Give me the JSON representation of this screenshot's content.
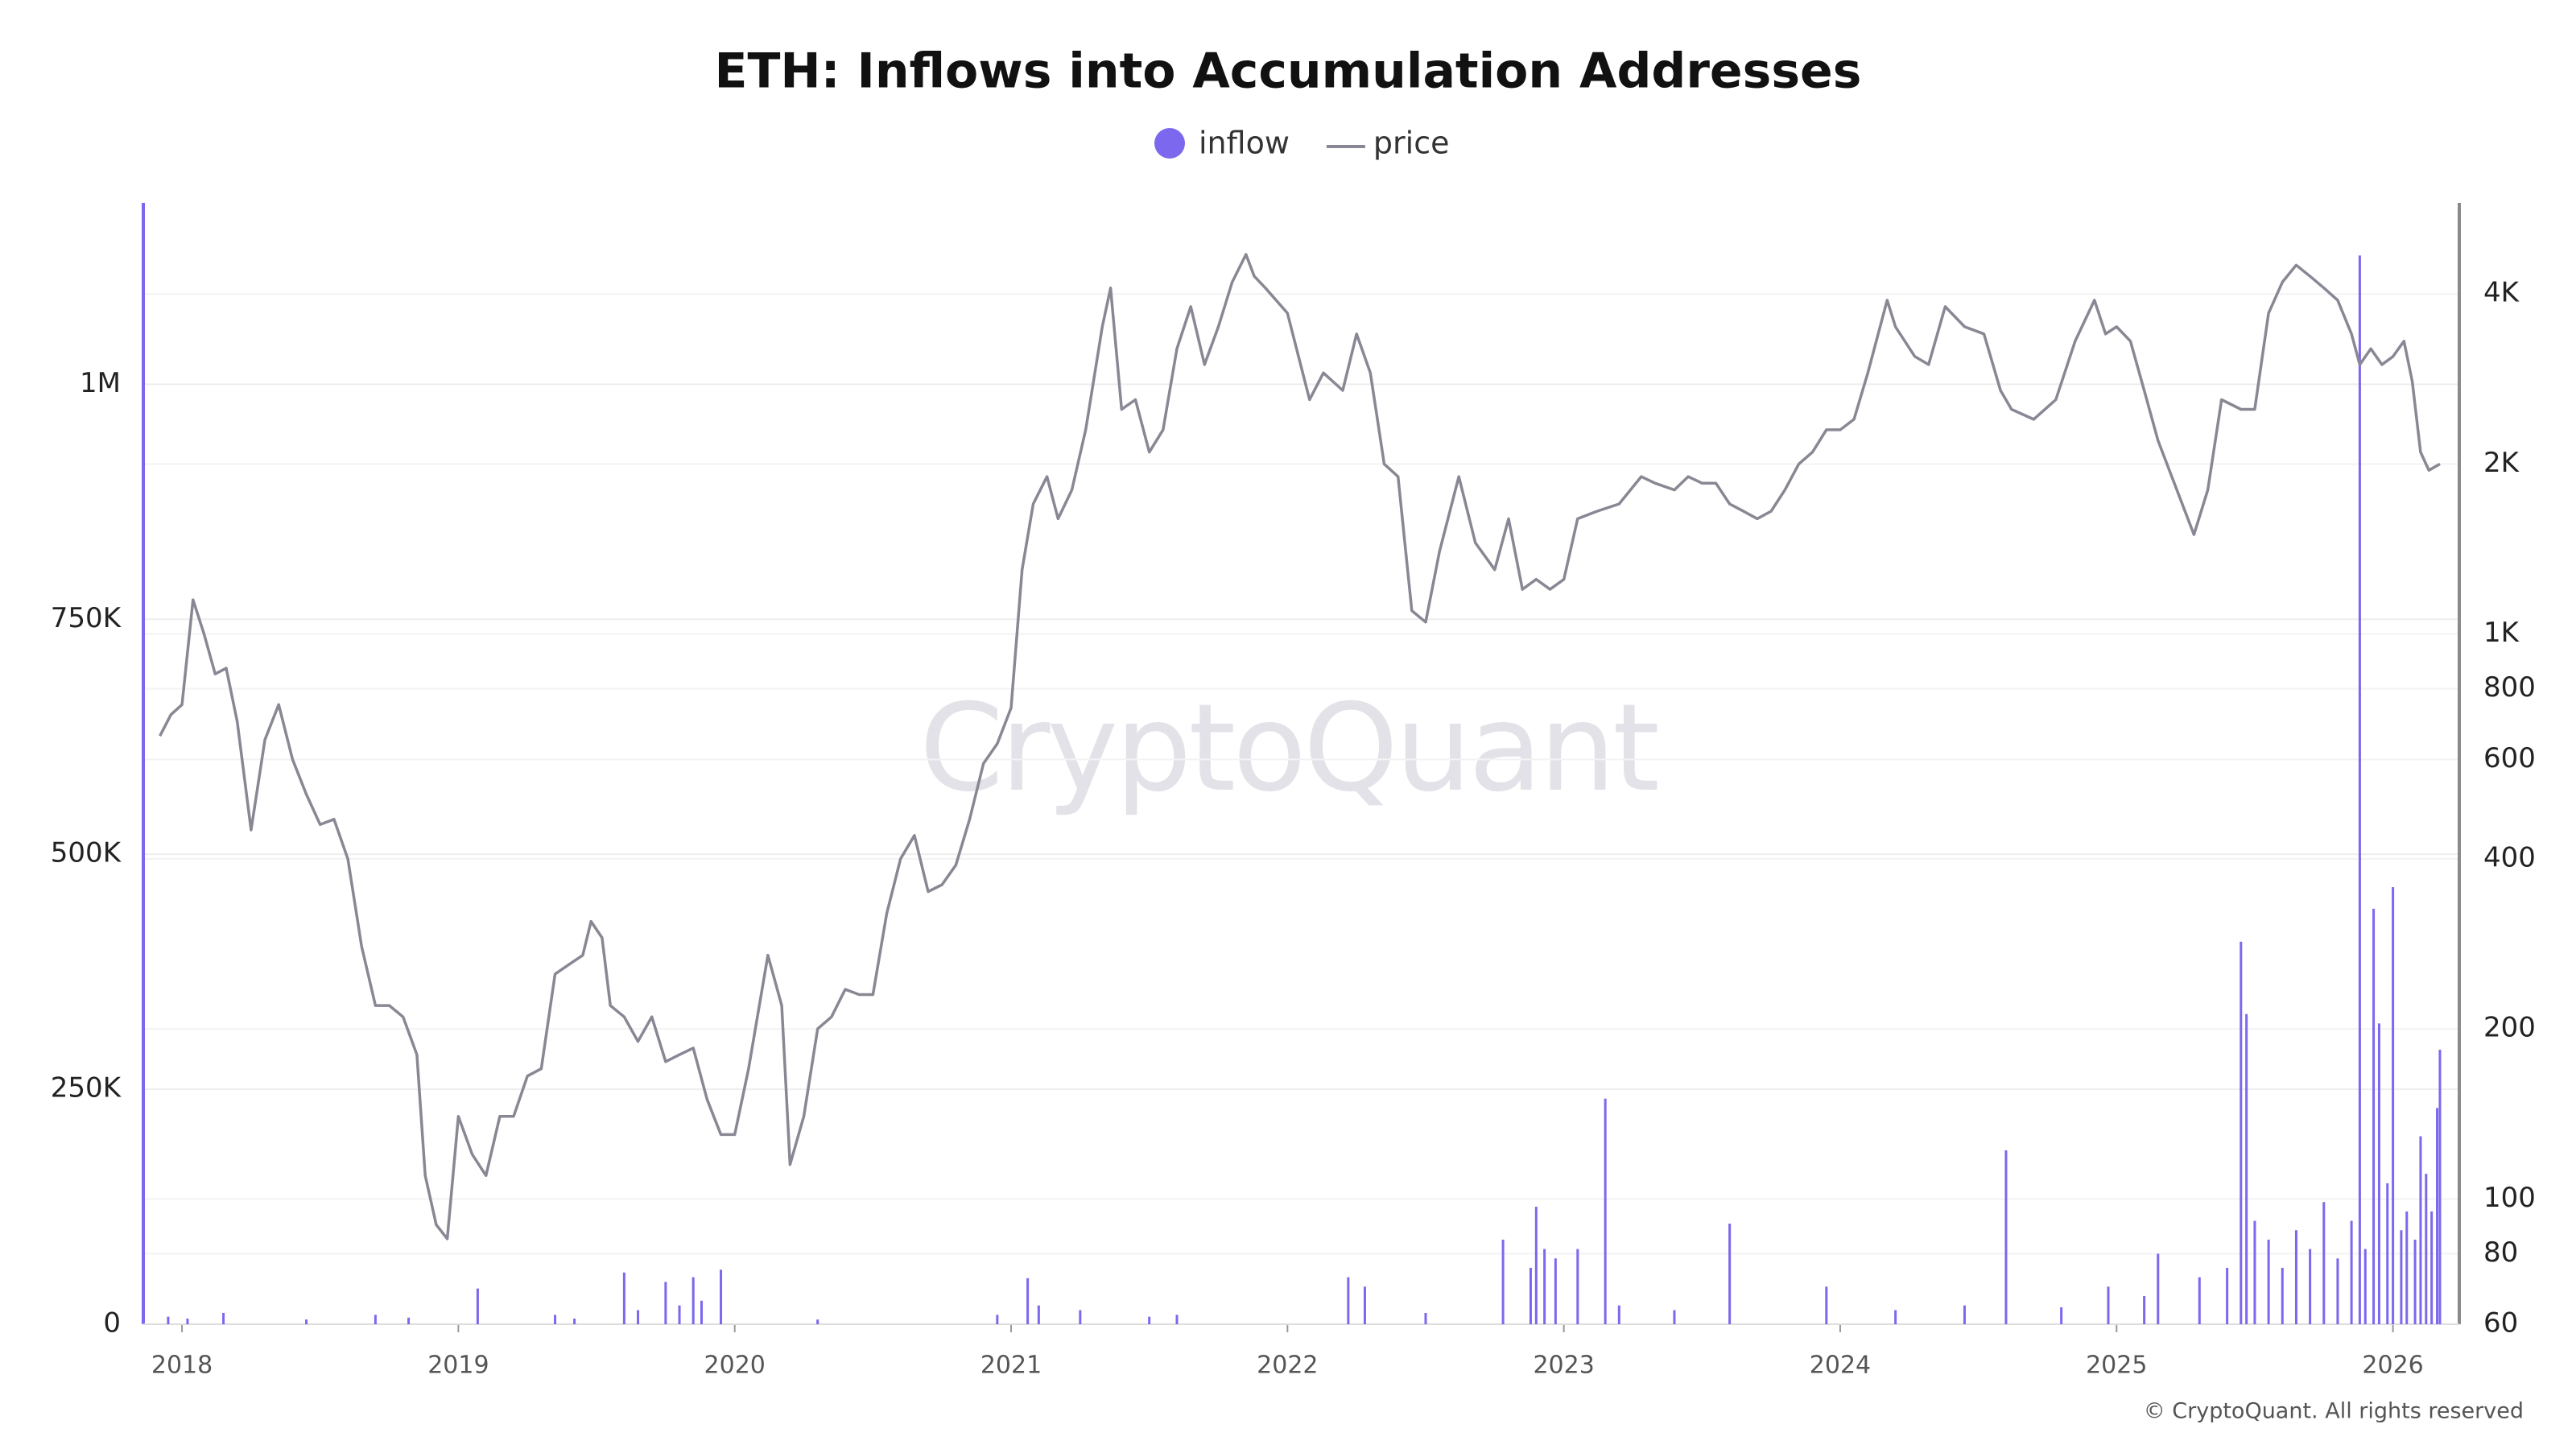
{
  "chart_data": {
    "type": "bar-line",
    "title": "ETH: Inflows into Accumulation Addresses",
    "watermark": "CryptoQuant",
    "source": "© CryptoQuant. All rights reserved",
    "xlim": [
      2017.86,
      2026.24
    ],
    "xticks": [
      2018,
      2019,
      2020,
      2021,
      2022,
      2023,
      2024,
      2025,
      2026
    ],
    "ylim": [
      0,
      1193000
    ],
    "yticks": [
      0,
      {
        "value": 250000,
        "label": "250K"
      },
      {
        "value": 500000,
        "label": "500K"
      },
      {
        "value": 750000,
        "label": "750K"
      },
      {
        "value": 1000000,
        "label": "1M"
      }
    ],
    "y2lim": [
      60,
      5800
    ],
    "y2scale": "log",
    "y2ticks": [
      60,
      80,
      100,
      200,
      400,
      600,
      800,
      {
        "value": 1000,
        "label": "1K"
      },
      {
        "value": 2000,
        "label": "2K"
      },
      {
        "value": 4000,
        "label": "4K"
      }
    ],
    "grid": true,
    "series": [
      {
        "name": "inflow",
        "color": "#7b68ee",
        "type": "bar",
        "x": [
          2017.95,
          2018.02,
          2018.15,
          2018.45,
          2018.7,
          2018.82,
          2019.07,
          2019.35,
          2019.42,
          2019.6,
          2019.65,
          2019.75,
          2019.8,
          2019.85,
          2019.88,
          2019.95,
          2020.3,
          2020.95,
          2021.06,
          2021.1,
          2021.25,
          2021.5,
          2021.6,
          2022.22,
          2022.28,
          2022.5,
          2022.78,
          2022.88,
          2022.9,
          2022.93,
          2022.97,
          2023.05,
          2023.15,
          2023.2,
          2023.4,
          2023.6,
          2023.95,
          2024.2,
          2024.45,
          2024.6,
          2024.8,
          2024.97,
          2025.1,
          2025.15,
          2025.3,
          2025.4,
          2025.45,
          2025.47,
          2025.5,
          2025.55,
          2025.6,
          2025.65,
          2025.7,
          2025.75,
          2025.8,
          2025.85,
          2025.88,
          2025.9,
          2025.93,
          2025.95,
          2025.98,
          2026.0,
          2026.03,
          2026.05,
          2026.08,
          2026.1,
          2026.12,
          2026.14,
          2026.16,
          2026.17
        ],
        "values": [
          8000,
          6000,
          12000,
          5000,
          10000,
          7000,
          38000,
          10000,
          6000,
          55000,
          15000,
          45000,
          20000,
          50000,
          25000,
          58000,
          5000,
          10000,
          49000,
          20000,
          15000,
          8000,
          10000,
          50000,
          40000,
          12000,
          90000,
          60000,
          125000,
          80000,
          70000,
          80000,
          240000,
          20000,
          15000,
          107000,
          40000,
          15000,
          20000,
          185000,
          18000,
          40000,
          30000,
          75000,
          50000,
          60000,
          407000,
          330000,
          110000,
          90000,
          60000,
          100000,
          80000,
          130000,
          70000,
          110000,
          1137000,
          80000,
          442000,
          320000,
          150000,
          465000,
          100000,
          120000,
          90000,
          200000,
          160000,
          120000,
          230000,
          292000
        ]
      },
      {
        "name": "price",
        "color": "#8a8794",
        "type": "line",
        "axis": "y2",
        "x": [
          2017.92,
          2017.96,
          2018.0,
          2018.04,
          2018.08,
          2018.12,
          2018.16,
          2018.2,
          2018.25,
          2018.3,
          2018.35,
          2018.4,
          2018.45,
          2018.5,
          2018.55,
          2018.6,
          2018.65,
          2018.7,
          2018.75,
          2018.8,
          2018.85,
          2018.88,
          2018.92,
          2018.96,
          2019.0,
          2019.05,
          2019.1,
          2019.15,
          2019.2,
          2019.25,
          2019.3,
          2019.35,
          2019.4,
          2019.45,
          2019.48,
          2019.52,
          2019.55,
          2019.6,
          2019.65,
          2019.7,
          2019.75,
          2019.8,
          2019.85,
          2019.9,
          2019.95,
          2020.0,
          2020.05,
          2020.12,
          2020.17,
          2020.2,
          2020.25,
          2020.3,
          2020.35,
          2020.4,
          2020.45,
          2020.5,
          2020.55,
          2020.6,
          2020.65,
          2020.7,
          2020.75,
          2020.8,
          2020.85,
          2020.9,
          2020.95,
          2021.0,
          2021.04,
          2021.08,
          2021.13,
          2021.17,
          2021.22,
          2021.27,
          2021.33,
          2021.36,
          2021.4,
          2021.45,
          2021.5,
          2021.55,
          2021.6,
          2021.65,
          2021.7,
          2021.75,
          2021.8,
          2021.85,
          2021.88,
          2021.92,
          2022.0,
          2022.04,
          2022.08,
          2022.13,
          2022.2,
          2022.25,
          2022.3,
          2022.35,
          2022.4,
          2022.45,
          2022.5,
          2022.55,
          2022.62,
          2022.68,
          2022.75,
          2022.8,
          2022.85,
          2022.9,
          2022.95,
          2023.0,
          2023.05,
          2023.12,
          2023.2,
          2023.28,
          2023.33,
          2023.4,
          2023.45,
          2023.5,
          2023.55,
          2023.6,
          2023.65,
          2023.7,
          2023.75,
          2023.8,
          2023.85,
          2023.9,
          2023.95,
          2024.0,
          2024.05,
          2024.1,
          2024.17,
          2024.2,
          2024.27,
          2024.32,
          2024.38,
          2024.45,
          2024.52,
          2024.58,
          2024.62,
          2024.7,
          2024.78,
          2024.85,
          2024.92,
          2024.96,
          2025.0,
          2025.05,
          2025.1,
          2025.15,
          2025.2,
          2025.28,
          2025.33,
          2025.38,
          2025.45,
          2025.5,
          2025.55,
          2025.6,
          2025.65,
          2025.7,
          2025.75,
          2025.8,
          2025.85,
          2025.88,
          2025.92,
          2025.96,
          2026.0,
          2026.04,
          2026.07,
          2026.1,
          2026.13,
          2026.17
        ],
        "values": [
          660,
          720,
          750,
          1150,
          1000,
          850,
          870,
          700,
          450,
          650,
          750,
          600,
          520,
          460,
          470,
          400,
          280,
          220,
          220,
          210,
          180,
          110,
          90,
          85,
          140,
          120,
          110,
          140,
          140,
          165,
          170,
          250,
          260,
          270,
          310,
          290,
          220,
          210,
          190,
          210,
          175,
          180,
          185,
          150,
          130,
          130,
          170,
          270,
          220,
          115,
          140,
          200,
          210,
          235,
          230,
          230,
          320,
          400,
          440,
          350,
          360,
          390,
          470,
          590,
          640,
          740,
          1300,
          1700,
          1900,
          1600,
          1800,
          2300,
          3500,
          4100,
          2500,
          2600,
          2100,
          2300,
          3200,
          3800,
          3000,
          3500,
          4200,
          4700,
          4300,
          4100,
          3700,
          3100,
          2600,
          2900,
          2700,
          3400,
          2900,
          2000,
          1900,
          1100,
          1050,
          1400,
          1900,
          1450,
          1300,
          1600,
          1200,
          1250,
          1200,
          1250,
          1600,
          1650,
          1700,
          1900,
          1850,
          1800,
          1900,
          1850,
          1850,
          1700,
          1650,
          1600,
          1650,
          1800,
          2000,
          2100,
          2300,
          2300,
          2400,
          2900,
          3900,
          3500,
          3100,
          3000,
          3800,
          3500,
          3400,
          2700,
          2500,
          2400,
          2600,
          3300,
          3900,
          3400,
          3500,
          3300,
          2700,
          2200,
          1900,
          1500,
          1800,
          2600,
          2500,
          2500,
          3700,
          4200,
          4500,
          4300,
          4100,
          3900,
          3400,
          3000,
          3200,
          3000,
          3100,
          3300,
          2800,
          2100,
          1950,
          2000
        ]
      }
    ]
  }
}
